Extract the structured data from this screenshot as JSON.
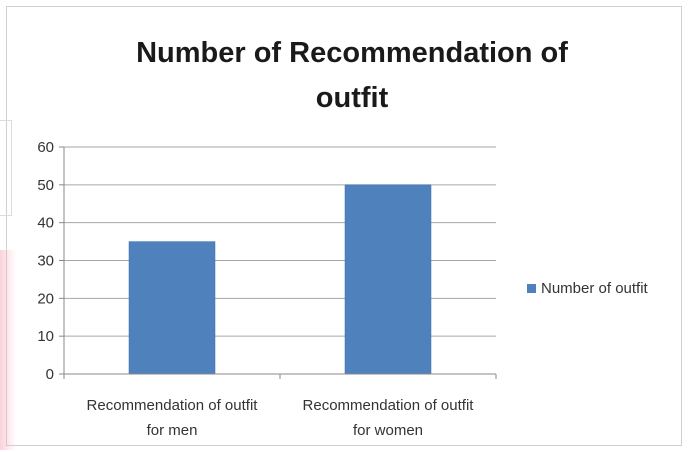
{
  "chart_data": {
    "type": "bar",
    "title_lines": [
      "Number of Recommendation of",
      "outfit"
    ],
    "categories": [
      [
        "Recommendation of outfit",
        "for men"
      ],
      [
        "Recommendation of outfit",
        "for women"
      ]
    ],
    "series": [
      {
        "name": "Number of outfit",
        "values": [
          35,
          50
        ],
        "color": "#4f81bd"
      }
    ],
    "ylim": [
      0,
      60
    ],
    "yticks": [
      0,
      10,
      20,
      30,
      40,
      50,
      60
    ],
    "grid": true,
    "legend": "right"
  }
}
